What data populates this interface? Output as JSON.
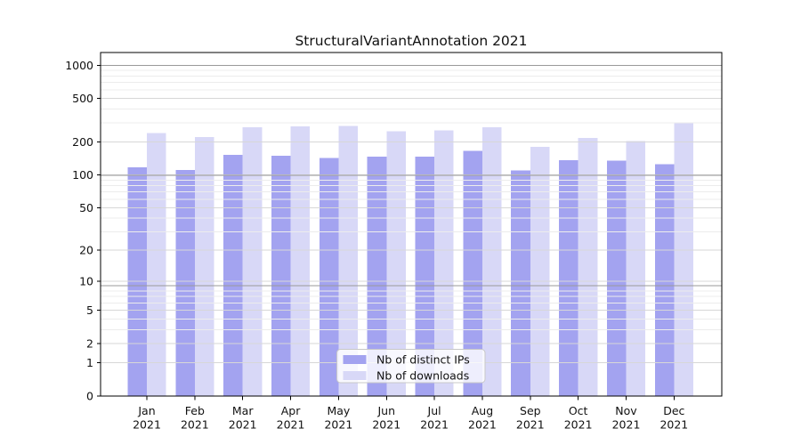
{
  "chart_data": {
    "type": "bar",
    "title": "StructuralVariantAnnotation 2021",
    "categories": [
      "Jan 2021",
      "Feb 2021",
      "Mar 2021",
      "Apr 2021",
      "May 2021",
      "Jun 2021",
      "Jul 2021",
      "Aug 2021",
      "Sep 2021",
      "Oct 2021",
      "Nov 2021",
      "Dec 2021"
    ],
    "series": [
      {
        "name": "Nb of distinct IPs",
        "color": "#a3a3f0",
        "values": [
          118,
          111,
          153,
          150,
          144,
          147,
          148,
          167,
          110,
          137,
          135,
          126
        ]
      },
      {
        "name": "Nb of downloads",
        "color": "#d8d8f7",
        "values": [
          242,
          222,
          274,
          279,
          281,
          251,
          255,
          273,
          181,
          219,
          205,
          303
        ]
      }
    ],
    "y_axis": {
      "scale": "log1p",
      "ticks": [
        0,
        1,
        2,
        5,
        10,
        20,
        50,
        100,
        200,
        500,
        1000
      ],
      "ylim": [
        0,
        1300
      ]
    },
    "xlabel": "",
    "ylabel": "",
    "grid": true,
    "legend_position": "lower center",
    "colors": {
      "frame": "#000000",
      "grid_minor": "#ececec",
      "grid_tick": "#d7d7d7",
      "grid_decade": "#9a9a9a",
      "legend_border": "#c8c8c8"
    }
  }
}
